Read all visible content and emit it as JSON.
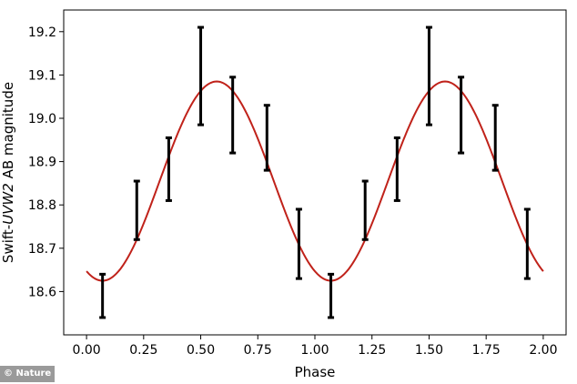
{
  "chart_data": {
    "type": "scatter",
    "xlabel": "Phase",
    "ylabel_prefix": "Swift-",
    "ylabel_italic": "UVW2",
    "ylabel_suffix": " AB magnitude",
    "xlim": [
      -0.1,
      2.1
    ],
    "ylim": [
      19.25,
      18.5
    ],
    "y_inverted": true,
    "x_ticks": [
      "0.00",
      "0.25",
      "0.50",
      "0.75",
      "1.00",
      "1.25",
      "1.50",
      "1.75",
      "2.00"
    ],
    "y_ticks": [
      "18.6",
      "18.7",
      "18.8",
      "18.9",
      "19.0",
      "19.1",
      "19.2"
    ],
    "grid": false,
    "legend": "none",
    "error_bars": {
      "color": "#000000",
      "points": [
        {
          "x": 0.07,
          "y_low": 18.54,
          "y_high": 18.64
        },
        {
          "x": 0.22,
          "y_low": 18.72,
          "y_high": 18.855
        },
        {
          "x": 0.36,
          "y_low": 18.81,
          "y_high": 18.955
        },
        {
          "x": 0.5,
          "y_low": 18.985,
          "y_high": 19.21
        },
        {
          "x": 0.64,
          "y_low": 18.92,
          "y_high": 19.095
        },
        {
          "x": 0.79,
          "y_low": 18.88,
          "y_high": 19.03
        },
        {
          "x": 0.93,
          "y_low": 18.63,
          "y_high": 18.79
        },
        {
          "x": 1.07,
          "y_low": 18.54,
          "y_high": 18.64
        },
        {
          "x": 1.22,
          "y_low": 18.72,
          "y_high": 18.855
        },
        {
          "x": 1.36,
          "y_low": 18.81,
          "y_high": 18.955
        },
        {
          "x": 1.5,
          "y_low": 18.985,
          "y_high": 19.21
        },
        {
          "x": 1.64,
          "y_low": 18.92,
          "y_high": 19.095
        },
        {
          "x": 1.79,
          "y_low": 18.88,
          "y_high": 19.03
        },
        {
          "x": 1.93,
          "y_low": 18.63,
          "y_high": 18.79
        }
      ]
    },
    "model_curve": {
      "type": "sinusoid",
      "color": "#c0221a",
      "mean": 18.855,
      "amplitude": 0.23,
      "period": 1.0,
      "peak_phase": 0.07,
      "x_range": [
        0.0,
        2.0
      ]
    }
  },
  "credit": "© Nature"
}
